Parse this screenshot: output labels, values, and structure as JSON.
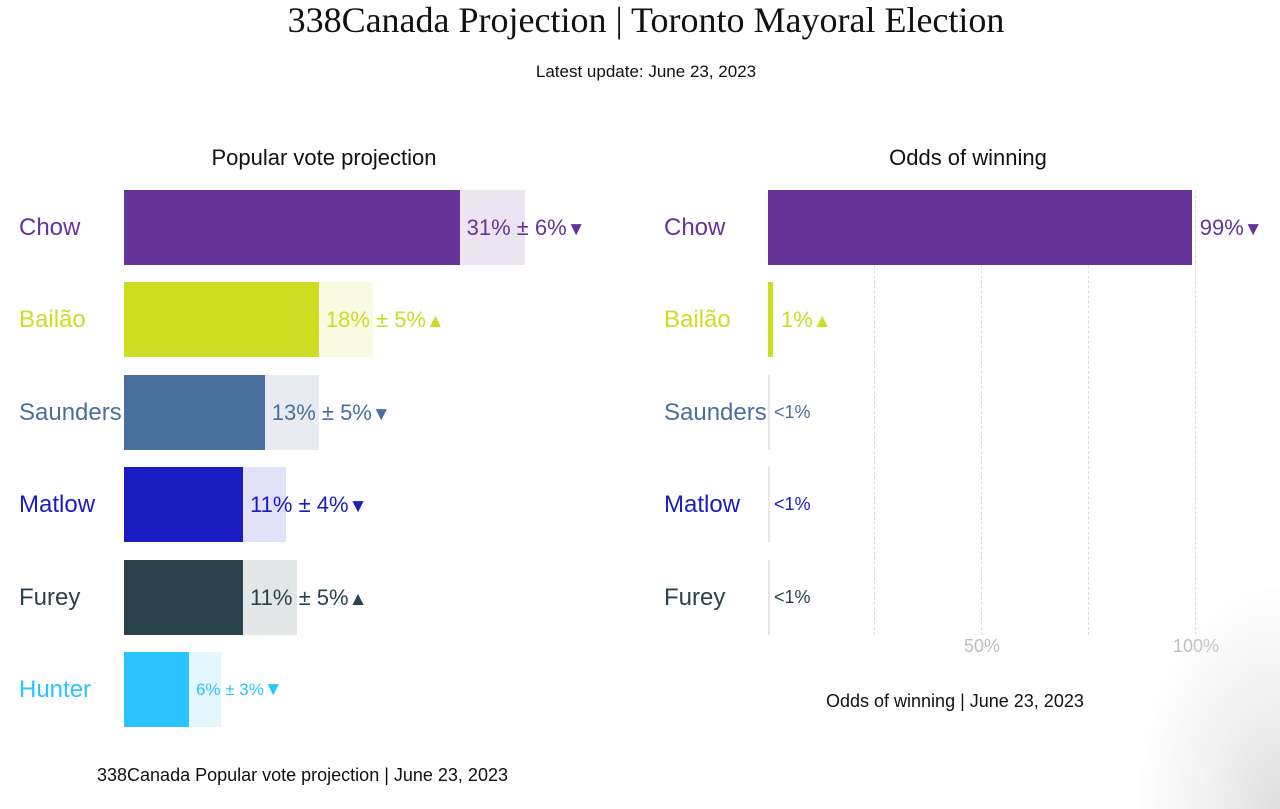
{
  "header": {
    "title": "338Canada Projection | Toronto Mayoral Election",
    "update": "Latest update: June 23, 2023"
  },
  "chart_data": [
    {
      "type": "bar",
      "orientation": "horizontal",
      "title": "Popular vote projection",
      "footer": "338Canada Popular vote projection | June 23, 2023",
      "categories": [
        "Chow",
        "Bailão",
        "Saunders",
        "Matlow",
        "Furey",
        "Hunter"
      ],
      "values": [
        31,
        18,
        13,
        11,
        11,
        6
      ],
      "margins": [
        6,
        5,
        5,
        4,
        5,
        3
      ],
      "labels": [
        "31% ± 6%",
        "18% ± 5%",
        "13% ± 5%",
        "11% ± 4%",
        "11% ± 5%",
        "6% ± 3%"
      ],
      "trend": [
        "down",
        "up",
        "down",
        "down",
        "up",
        "down"
      ],
      "colors": [
        "#663399",
        "#ccdd22",
        "#4a6f9e",
        "#1b1bc2",
        "#2a434a",
        "#2bc3ff"
      ],
      "xlim": [
        0,
        46
      ]
    },
    {
      "type": "bar",
      "orientation": "horizontal",
      "title": "Odds of winning",
      "footer": "Odds of winning | June 23, 2023",
      "categories": [
        "Chow",
        "Bailão",
        "Saunders",
        "Matlow",
        "Furey"
      ],
      "values": [
        99,
        1,
        0.1,
        0.1,
        0.1
      ],
      "labels": [
        "99%",
        "1%",
        "<1%",
        "<1%",
        "<1%"
      ],
      "trend": [
        "down",
        "up",
        "",
        "",
        ""
      ],
      "colors": [
        "#663399",
        "#ccdd22",
        "#4a6f9e",
        "#1b1bc2",
        "#2a434a"
      ],
      "xlim": [
        0,
        100
      ],
      "gridlines": [
        25,
        50,
        75,
        100
      ],
      "xticks": [
        50,
        100
      ],
      "xtick_labels": [
        "50%",
        "100%"
      ]
    }
  ]
}
